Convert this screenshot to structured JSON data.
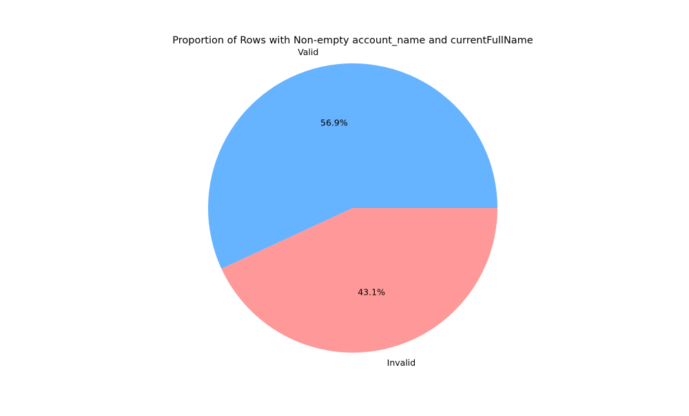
{
  "chart_data": {
    "type": "pie",
    "title": "Proportion of Rows with Non-empty account_name and currentFullName",
    "slices": [
      {
        "label": "Valid",
        "value": 56.9,
        "percent_label": "56.9%",
        "color": "#66b3ff"
      },
      {
        "label": "Invalid",
        "value": 43.1,
        "percent_label": "43.1%",
        "color": "#ff9999"
      }
    ],
    "start_angle_deg": 0,
    "direction": "counterclockwise"
  }
}
